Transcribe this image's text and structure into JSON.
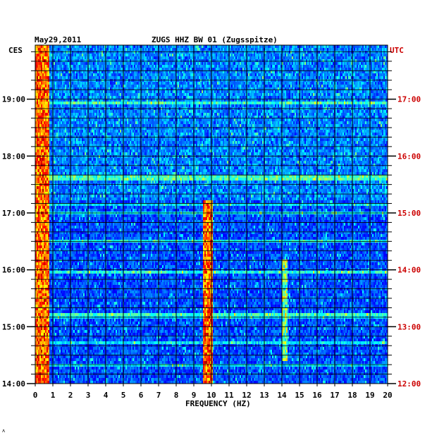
{
  "chart_data": {
    "type": "heatmap",
    "date_label": "May29,2011",
    "title": "ZUGS HHZ BW 01 (Zugsspitze)",
    "left_axis_label": "CES",
    "right_axis_label": "UTC",
    "xlabel": "FREQUENCY (HZ)",
    "xlim": [
      0,
      20
    ],
    "x_ticks": [
      "0",
      "1",
      "2",
      "3",
      "4",
      "5",
      "6",
      "7",
      "8",
      "9",
      "10",
      "11",
      "12",
      "13",
      "14",
      "15",
      "16",
      "17",
      "18",
      "19",
      "20"
    ],
    "left_time_ticks": [
      {
        "hour": 19,
        "label": "19:00"
      },
      {
        "hour": 18,
        "label": "18:00"
      },
      {
        "hour": 17,
        "label": "17:00"
      },
      {
        "hour": 16,
        "label": "16:00"
      },
      {
        "hour": 15,
        "label": "15:00"
      },
      {
        "hour": 14,
        "label": "14:00"
      }
    ],
    "right_time_ticks": [
      {
        "hour": 19,
        "label": "17:00"
      },
      {
        "hour": 18,
        "label": "16:00"
      },
      {
        "hour": 17,
        "label": "15:00"
      },
      {
        "hour": 16,
        "label": "14:00"
      },
      {
        "hour": 15,
        "label": "13:00"
      },
      {
        "hour": 14,
        "label": "12:00"
      }
    ],
    "ylim_cest_hours": [
      14,
      19.95
    ],
    "features": [
      {
        "name": "low-frequency band",
        "freq_hz": [
          0,
          0.8
        ],
        "time_cest": [
          14,
          19.95
        ],
        "level": "high"
      },
      {
        "name": "9.8 Hz line",
        "freq_hz": [
          9.5,
          10.1
        ],
        "time_cest": [
          14,
          17.2
        ],
        "level": "high"
      },
      {
        "name": "14.2 Hz line",
        "freq_hz": [
          14.0,
          14.3
        ],
        "time_cest": [
          14.4,
          16.2
        ],
        "level": "medium"
      }
    ],
    "grid": true
  },
  "colors": {
    "background": "#ffffff",
    "plot_background": "#0a1f96",
    "right_axis_labels": "#cc0000",
    "left_axis_labels": "#000000"
  }
}
